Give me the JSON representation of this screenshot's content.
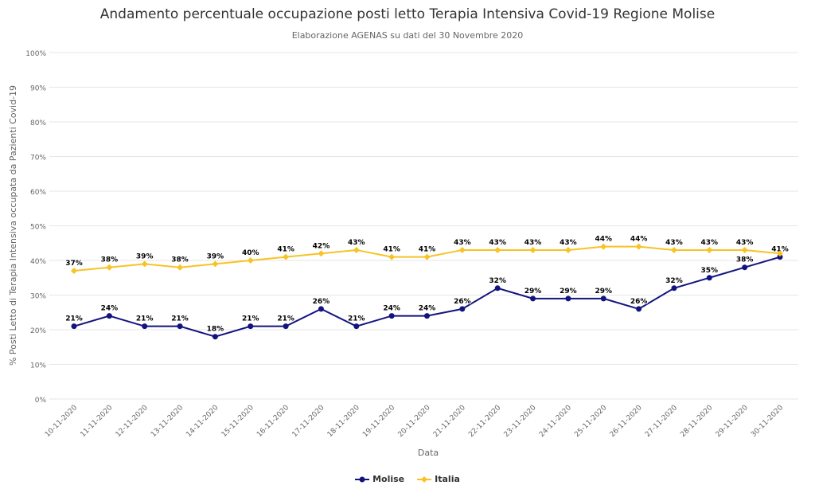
{
  "chart_data": {
    "type": "line",
    "title": "Andamento percentuale occupazione posti letto Terapia Intensiva Covid-19 Regione Molise",
    "subtitle": "Elaborazione AGENAS su dati del 30 Novembre 2020",
    "xlabel": "Data",
    "ylabel": "% Posti Letto di Terapia Intensiva occupata da Pazienti Covid-19",
    "ylim": [
      0,
      100
    ],
    "yticks": [
      "0%",
      "10%",
      "20%",
      "30%",
      "40%",
      "50%",
      "60%",
      "70%",
      "80%",
      "90%",
      "100%"
    ],
    "grid": true,
    "legend_position": "bottom",
    "categories": [
      "10-11-2020",
      "11-11-2020",
      "12-11-2020",
      "13-11-2020",
      "14-11-2020",
      "15-11-2020",
      "16-11-2020",
      "17-11-2020",
      "18-11-2020",
      "19-11-2020",
      "20-11-2020",
      "21-11-2020",
      "22-11-2020",
      "23-11-2020",
      "24-11-2020",
      "25-11-2020",
      "26-11-2020",
      "27-11-2020",
      "28-11-2020",
      "29-11-2020",
      "30-11-2020"
    ],
    "series": [
      {
        "name": "Molise",
        "color": "#13137f",
        "values": [
          21,
          24,
          21,
          21,
          18,
          21,
          21,
          26,
          21,
          24,
          24,
          26,
          32,
          29,
          29,
          29,
          26,
          32,
          35,
          38,
          41
        ]
      },
      {
        "name": "Italia",
        "color": "#f7c325",
        "values": [
          37,
          38,
          39,
          38,
          39,
          40,
          41,
          42,
          43,
          41,
          41,
          43,
          43,
          43,
          43,
          44,
          44,
          43,
          43,
          43,
          42
        ]
      }
    ]
  }
}
